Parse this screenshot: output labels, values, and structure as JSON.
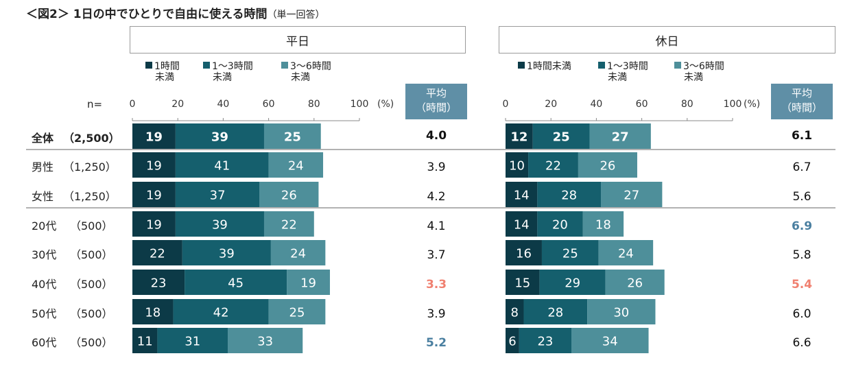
{
  "title": "＜図2＞ 1日の中でひとりで自由に使える時間",
  "title_note": "（単一回答）",
  "n_label": "n=",
  "pct_label": "(%)",
  "avg_header_line1": "平均",
  "avg_header_line2": "（時間）",
  "colors": {
    "s1": "#0c3a47",
    "s2": "#155f6d",
    "s3": "#4e8f9a",
    "avg_high": "#4a7fa0",
    "avg_low": "#f08070",
    "avg_normal": "#111111"
  },
  "rows": [
    {
      "label": "全体",
      "n": "（2,500）",
      "bold": true
    },
    {
      "label": "男性",
      "n": "（1,250）",
      "bold": false
    },
    {
      "label": "女性",
      "n": "（1,250）",
      "bold": false
    },
    {
      "label": "20代",
      "n": "（500）",
      "bold": false
    },
    {
      "label": "30代",
      "n": "（500）",
      "bold": false
    },
    {
      "label": "40代",
      "n": "（500）",
      "bold": false
    },
    {
      "label": "50代",
      "n": "（500）",
      "bold": false
    },
    {
      "label": "60代",
      "n": "（500）",
      "bold": false
    }
  ],
  "chart_data": [
    {
      "type": "bar",
      "stacked": true,
      "orientation": "horizontal",
      "title": "平日",
      "legend": [
        {
          "line1": "1時間",
          "line2": "未満"
        },
        {
          "line1": "1～3時間",
          "line2": "未満"
        },
        {
          "line1": "3～6時間",
          "line2": "未満"
        }
      ],
      "categories": [
        "全体",
        "男性",
        "女性",
        "20代",
        "30代",
        "40代",
        "50代",
        "60代"
      ],
      "series": [
        {
          "name": "1時間未満",
          "values": [
            19,
            19,
            19,
            19,
            22,
            23,
            18,
            11
          ]
        },
        {
          "name": "1～3時間未満",
          "values": [
            39,
            41,
            37,
            39,
            39,
            45,
            42,
            31
          ]
        },
        {
          "name": "3～6時間未満",
          "values": [
            25,
            24,
            26,
            22,
            24,
            19,
            25,
            33
          ]
        }
      ],
      "xlim": [
        0,
        100
      ],
      "ticks": [
        "0",
        "20",
        "40",
        "60",
        "80",
        "100"
      ],
      "averages": [
        "4.0",
        "3.9",
        "4.2",
        "4.1",
        "3.7",
        "3.3",
        "3.9",
        "5.2"
      ],
      "average_highlight": [
        "normal",
        "normal",
        "normal",
        "normal",
        "normal",
        "low",
        "normal",
        "high"
      ]
    },
    {
      "type": "bar",
      "stacked": true,
      "orientation": "horizontal",
      "title": "休日",
      "legend": [
        {
          "line1": "1時間未満",
          "line2": ""
        },
        {
          "line1": "1～3時間",
          "line2": "未満"
        },
        {
          "line1": "3～6時間",
          "line2": "未満"
        }
      ],
      "categories": [
        "全体",
        "男性",
        "女性",
        "20代",
        "30代",
        "40代",
        "50代",
        "60代"
      ],
      "series": [
        {
          "name": "1時間未満",
          "values": [
            12,
            10,
            14,
            14,
            16,
            15,
            8,
            6
          ]
        },
        {
          "name": "1～3時間未満",
          "values": [
            25,
            22,
            28,
            20,
            25,
            29,
            28,
            23
          ]
        },
        {
          "name": "3～6時間未満",
          "values": [
            27,
            26,
            27,
            18,
            24,
            26,
            30,
            34
          ]
        }
      ],
      "xlim": [
        0,
        100
      ],
      "ticks": [
        "0",
        "20",
        "40",
        "60",
        "80",
        "100"
      ],
      "averages": [
        "6.1",
        "6.7",
        "5.6",
        "6.9",
        "5.8",
        "5.4",
        "6.0",
        "6.6"
      ],
      "average_highlight": [
        "normal",
        "normal",
        "normal",
        "high",
        "normal",
        "low",
        "normal",
        "normal"
      ]
    }
  ]
}
